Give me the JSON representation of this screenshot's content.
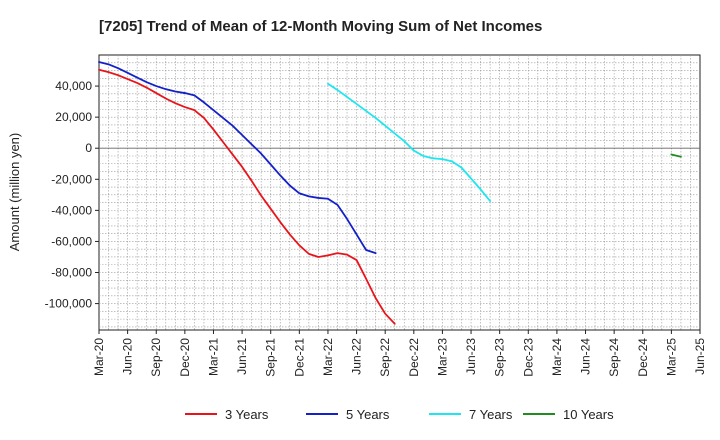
{
  "chart_data": {
    "type": "line",
    "title": "[7205]  Trend of Mean of 12-Month Moving Sum of Net Incomes",
    "xlabel": "",
    "ylabel": "Amount (million yen)",
    "ylim": [
      -117000,
      60000
    ],
    "yticks": [
      40000,
      20000,
      0,
      -20000,
      -40000,
      -60000,
      -80000,
      -100000
    ],
    "ytick_labels": [
      "40,000",
      "20,000",
      "0",
      "-20,000",
      "-40,000",
      "-60,000",
      "-80,000",
      "-100,000"
    ],
    "xticks": [
      "Mar-20",
      "Jun-20",
      "Sep-20",
      "Dec-20",
      "Mar-21",
      "Jun-21",
      "Sep-21",
      "Dec-21",
      "Mar-22",
      "Jun-22",
      "Sep-22",
      "Dec-22",
      "Mar-23",
      "Jun-23",
      "Sep-23",
      "Dec-23",
      "Mar-24",
      "Jun-24",
      "Sep-24",
      "Dec-24",
      "Mar-25",
      "Jun-25"
    ],
    "grid": true,
    "legend_position": "bottom",
    "series": [
      {
        "name": "3 Years",
        "color": "#e8141b",
        "start": "Mar-20",
        "values": [
          50500,
          49000,
          47000,
          44500,
          42000,
          39000,
          35500,
          32000,
          29000,
          26500,
          24500,
          19500,
          12000,
          4000,
          -4000,
          -12000,
          -21000,
          -30500,
          -39000,
          -47500,
          -55500,
          -62500,
          -68000,
          -70000,
          -69000,
          -67500,
          -68500,
          -72000,
          -84000,
          -96500,
          -106500,
          -113000
        ]
      },
      {
        "name": "5 Years",
        "color": "#1420c8",
        "start": "Mar-20",
        "values": [
          55500,
          54000,
          51500,
          48500,
          45500,
          42500,
          40000,
          38000,
          36500,
          35500,
          34000,
          29500,
          24500,
          19500,
          14500,
          8500,
          2500,
          -3500,
          -10500,
          -17500,
          -24000,
          -29000,
          -31000,
          -32000,
          -32500,
          -36500,
          -45500,
          -55500,
          -65500,
          -67500
        ]
      },
      {
        "name": "7 Years",
        "color": "#1ee6f0",
        "start": "Mar-22",
        "values": [
          41500,
          37500,
          33000,
          28500,
          24000,
          19500,
          14500,
          9500,
          4500,
          -1500,
          -5000,
          -6500,
          -7000,
          -8500,
          -12500,
          -19500,
          -26500,
          -34000
        ]
      },
      {
        "name": "10 Years",
        "color": "#228b22",
        "start": "Mar-25",
        "values": [
          -4000,
          -5500
        ]
      }
    ]
  }
}
